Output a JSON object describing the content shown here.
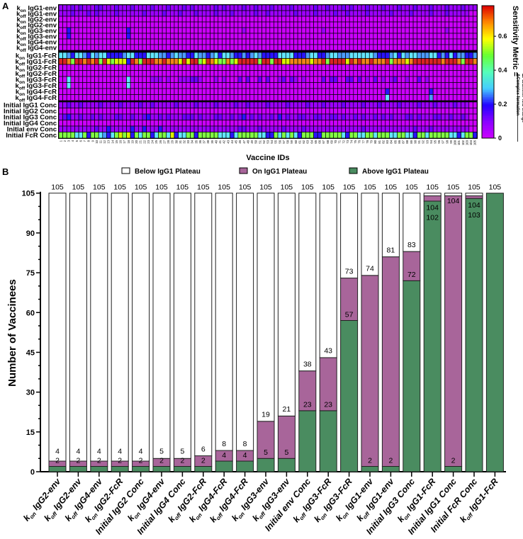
{
  "panel_labels": {
    "a": "A",
    "b": "B"
  },
  "chart_data": [
    {
      "type": "heatmap",
      "title": "",
      "xlabel": "Vaccine IDs",
      "x_ticks": [
        1,
        2,
        3,
        4,
        5,
        6,
        7,
        8,
        9,
        10,
        11,
        12,
        13,
        14,
        15,
        16,
        17,
        18,
        19,
        20,
        21,
        22,
        23,
        24,
        25,
        26,
        27,
        28,
        29,
        30,
        31,
        32,
        33,
        34,
        35,
        36,
        37,
        38,
        39,
        40,
        41,
        42,
        43,
        44,
        45,
        46,
        47,
        48,
        49,
        50,
        51,
        52,
        53,
        54,
        55,
        56,
        57,
        58,
        59,
        60,
        61,
        62,
        63,
        64,
        65,
        66,
        67,
        68,
        69,
        70,
        71,
        72,
        73,
        74,
        75,
        76,
        77,
        78,
        79,
        80,
        81,
        82,
        83,
        84,
        85,
        86,
        87,
        88,
        89,
        90,
        91,
        92,
        93,
        94,
        95,
        96,
        97,
        98,
        99,
        100,
        101,
        102,
        103,
        104,
        105
      ],
      "level_step": 0.08,
      "level_colors": [
        "#cc00ff",
        "#9c00ff",
        "#6e00ff",
        "#2a14ff",
        "#4c9cff",
        "#62e6ff",
        "#82ff44",
        "#dcf000",
        "#f08418",
        "#d82424"
      ],
      "rows": [
        {
          "prefix": "k",
          "sub": "on",
          "rest": " IgG1-env",
          "levels": "1112121112211121112111121112111212111112121111211211121111211111211211121211121112111211121112111211121112"
        },
        {
          "prefix": "k",
          "sub": "off",
          "rest": " IgG1-env",
          "levels": "1112111212111121111112111121112111211112111211111211211111121111211112112111121111121111211112111211111"
        },
        {
          "prefix": "k",
          "sub": "on",
          "rest": " IgG2-env",
          "levels": "0"
        },
        {
          "prefix": "k",
          "sub": "off",
          "rest": " IgG2-env",
          "levels": "0"
        },
        {
          "prefix": "k",
          "sub": "on",
          "rest": " IgG3-env",
          "levels": "00300000000000000300000000000000000000000000001000000000000000000010000000000000000000000000000001"
        },
        {
          "prefix": "k",
          "sub": "off",
          "rest": " IgG3-env",
          "levels": "00300000000000000300000000000000000000000000000000000000000000000000000000000000000000000000000000"
        },
        {
          "prefix": "k",
          "sub": "on",
          "rest": " IgG4-env",
          "levels": "0"
        },
        {
          "prefix": "k",
          "sub": "off",
          "rest": " IgG4-env",
          "levels": "0"
        },
        {
          "prefix": "k",
          "sub": "on",
          "rest": " IgG1-FcR",
          "levels": "554355435455333345533355544345443354434535543343454333355553334553345544455555543334535455444553435344334433"
        },
        {
          "prefix": "k",
          "sub": "off",
          "rest": " IgG1-FcR",
          "levels": "998699898969767773986999889888797996798766867999996996997788888788969999798988988896888789999999899986998888"
        },
        {
          "prefix": "k",
          "sub": "on",
          "rest": " IgG2-FcR",
          "levels": "0"
        },
        {
          "prefix": "k",
          "sub": "off",
          "rest": " IgG2-FcR",
          "levels": "0"
        },
        {
          "prefix": "k",
          "sub": "on",
          "rest": " IgG3-FcR",
          "levels": "005000000000000005000001110100111221000101000202002020012021010000202200220201020101200100201000"
        },
        {
          "prefix": "k",
          "sub": "off",
          "rest": " IgG3-FcR",
          "levels": "00500000000000000500000000000000000000000000000000000000000000000000000000000000000000000000000000"
        },
        {
          "prefix": "k",
          "sub": "on",
          "rest": " IgG4-FcR",
          "levels": "0000000000000000000000000000000000000000000000000000000000000000000000000000000000300000000003"
        },
        {
          "prefix": "k",
          "sub": "off",
          "rest": " IgG4-FcR",
          "levels": "0000000000000000000000000000000000000000000000000000000000000000000000000000000000500000000004"
        },
        {
          "prefix": "",
          "sub": "",
          "rest": "Initial IgG1 Conc",
          "levels": "1121121111211112111121121111121111211112111121121111211112111121112111121111211121111211112111211112111"
        },
        {
          "prefix": "",
          "sub": "",
          "rest": "Initial IgG2 Conc",
          "levels": "0"
        },
        {
          "prefix": "",
          "sub": "",
          "rest": "Initial IgG3 Conc",
          "levels": "1231121121211122112112311212111222121112211212312121121312112211221122121121211212121112212111221121121"
        },
        {
          "prefix": "",
          "sub": "",
          "rest": "Initial IgG4 Conc",
          "levels": "0"
        },
        {
          "prefix": "",
          "sub": "",
          "rest": "Initial env Conc",
          "levels": "1111111112113111113113111311111111111111111112211121111121111211111111111111211111111111121112111111111"
        },
        {
          "prefix": "",
          "sub": "",
          "rest": "Initial FcR Conc",
          "levels": "666655636654356767365663566573556636666655535666665533656565366633666665366556656665566553665666665535663666"
        }
      ],
      "colorbar": {
        "range": [
          0,
          0.78
        ],
        "tick_values": [
          0,
          0.2,
          0.4,
          0.6
        ],
        "tick_labels": [
          "0",
          "0.2",
          "0.4",
          "0.6"
        ],
        "title": "Sensitivity Metric =",
        "numerator": "ΔComplex formation",
        "denominator": "ΔParameter fold change",
        "gradient": [
          "#cc00ff",
          "#8a00ff",
          "#2200ff",
          "#44ccff",
          "#55ffbb",
          "#66ff33",
          "#ffff00",
          "#ff8800",
          "#dd0000"
        ]
      }
    },
    {
      "type": "bar",
      "stacked": true,
      "title": "",
      "xlabel": "",
      "ylabel": "Number of Vaccinees",
      "ylim": [
        0,
        105
      ],
      "y_ticks": [
        0,
        15,
        30,
        45,
        60,
        75,
        90,
        105
      ],
      "y_tick_labels": [
        "0",
        "15",
        "30",
        "45",
        "60",
        "75",
        "90",
        "105"
      ],
      "legend_position": "top",
      "categories": [
        {
          "prefix": "k",
          "sub": "on",
          "rest": " IgG2-env"
        },
        {
          "prefix": "k",
          "sub": "off",
          "rest": " IgG2-env"
        },
        {
          "prefix": "k",
          "sub": "off",
          "rest": " IgG4-env"
        },
        {
          "prefix": "k",
          "sub": "on",
          "rest": " IgG2-FcR"
        },
        {
          "prefix": "",
          "sub": "",
          "rest": "Initial IgG2 Conc"
        },
        {
          "prefix": "k",
          "sub": "on",
          "rest": " IgG4-env"
        },
        {
          "prefix": "",
          "sub": "",
          "rest": "Initial IgG4 Conc"
        },
        {
          "prefix": "k",
          "sub": "off",
          "rest": " IgG2-FcR"
        },
        {
          "prefix": "k",
          "sub": "on",
          "rest": " IgG4-FcR"
        },
        {
          "prefix": "k",
          "sub": "off",
          "rest": " IgG4-FcR"
        },
        {
          "prefix": "k",
          "sub": "on",
          "rest": " IgG3-env"
        },
        {
          "prefix": "k",
          "sub": "off",
          "rest": " IgG3-env"
        },
        {
          "prefix": "",
          "sub": "",
          "rest": "Initial env Conc"
        },
        {
          "prefix": "k",
          "sub": "off",
          "rest": " IgG3-FcR"
        },
        {
          "prefix": "k",
          "sub": "on",
          "rest": " IgG3-FcR"
        },
        {
          "prefix": "k",
          "sub": "on",
          "rest": " IgG1-env"
        },
        {
          "prefix": "k",
          "sub": "off",
          "rest": " IgG1-env"
        },
        {
          "prefix": "",
          "sub": "",
          "rest": "Initial IgG3 Conc"
        },
        {
          "prefix": "k",
          "sub": "on",
          "rest": " IgG1-FcR"
        },
        {
          "prefix": "",
          "sub": "",
          "rest": "Initial IgG1 Conc"
        },
        {
          "prefix": "",
          "sub": "",
          "rest": "Initial FcR Conc"
        },
        {
          "prefix": "k",
          "sub": "off",
          "rest": " IgG1-FcR"
        }
      ],
      "series": [
        {
          "name": "Above IgG1 Plateau",
          "color": "#4a8c60",
          "values": [
            2,
            2,
            2,
            2,
            2,
            2,
            2,
            2,
            4,
            4,
            5,
            5,
            23,
            23,
            57,
            2,
            2,
            72,
            102,
            2,
            103,
            105
          ]
        },
        {
          "name": "On IgG1 Plateau",
          "color": "#a8659a",
          "values": [
            2,
            2,
            2,
            2,
            2,
            3,
            3,
            4,
            4,
            4,
            14,
            16,
            15,
            20,
            16,
            72,
            79,
            11,
            2,
            102,
            1,
            0
          ]
        },
        {
          "name": "Below IgG1 Plateau",
          "color": "#ffffff",
          "values": [
            101,
            101,
            101,
            101,
            101,
            100,
            100,
            99,
            97,
            97,
            86,
            84,
            67,
            62,
            32,
            31,
            24,
            22,
            1,
            1,
            1,
            0
          ]
        }
      ],
      "data_labels": {
        "above_top": [
          "2",
          "2",
          "2",
          "2",
          "2",
          "2",
          "2",
          "2",
          "4",
          "4",
          "5",
          "5",
          "23",
          "23",
          "57",
          "2",
          "2",
          "72",
          "102",
          "2",
          "103",
          null
        ],
        "on_top": [
          "4",
          "4",
          "4",
          "4",
          "4",
          "5",
          "5",
          "6",
          "8",
          "8",
          "19",
          "21",
          "38",
          "43",
          "73",
          "74",
          "81",
          "83",
          "104",
          "104",
          "104",
          null
        ],
        "total": [
          "105",
          "105",
          "105",
          "105",
          "105",
          "105",
          "105",
          "105",
          "105",
          "105",
          "105",
          "105",
          "105",
          "105",
          "105",
          "105",
          "105",
          "105",
          "105",
          "105",
          "105",
          "105"
        ]
      }
    }
  ]
}
